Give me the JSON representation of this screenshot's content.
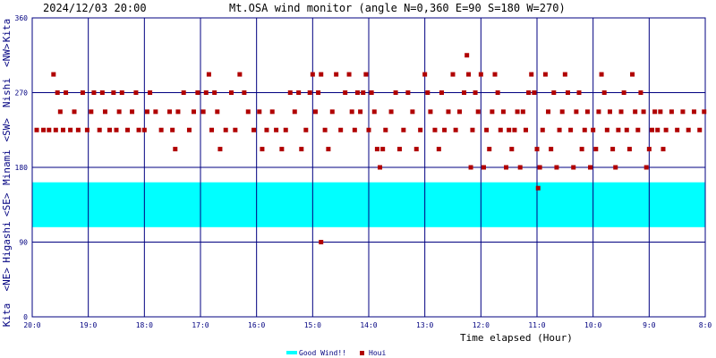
{
  "header": {
    "timestamp": "2024/12/03 20:00",
    "title": "Mt.OSA wind monitor (angle N=0,360 E=90 S=180 W=270)"
  },
  "colors": {
    "frame": "#000080",
    "grid": "#000080",
    "band": "#00ffff",
    "points": "#b00000",
    "text": "#000080"
  },
  "chart_data": {
    "type": "scatter",
    "xlabel": "Time elapsed (Hour)",
    "x_ticks": [
      "20:0",
      "19:0",
      "18:0",
      "17:0",
      "16:0",
      "15:0",
      "14:0",
      "13:0",
      "12:0",
      "11:0",
      "10:0",
      "9:0",
      "8:0"
    ],
    "x_range_hours_elapsed": [
      0,
      12
    ],
    "ylim": [
      0,
      360
    ],
    "y_ticks": [
      0,
      90,
      180,
      270,
      360
    ],
    "y_direction_labels": [
      "Kita",
      "<NE>",
      "Higashi",
      "<SE>",
      "Minami",
      "<SW>",
      "Nishi",
      "<NW>",
      "Kita"
    ],
    "grid": true,
    "legend_position": "bottom-center",
    "legend": [
      {
        "name": "Good Wind!!",
        "kind": "band",
        "range": [
          108,
          162
        ]
      },
      {
        "name": "Houi",
        "kind": "points"
      }
    ],
    "series": [
      {
        "name": "Houi",
        "points": [
          [
            0.08,
            225
          ],
          [
            0.2,
            225
          ],
          [
            0.3,
            225
          ],
          [
            0.38,
            292
          ],
          [
            0.42,
            225
          ],
          [
            0.45,
            270
          ],
          [
            0.5,
            247
          ],
          [
            0.55,
            225
          ],
          [
            0.6,
            270
          ],
          [
            0.68,
            225
          ],
          [
            0.75,
            247
          ],
          [
            0.82,
            225
          ],
          [
            0.9,
            270
          ],
          [
            0.98,
            225
          ],
          [
            1.05,
            247
          ],
          [
            1.1,
            270
          ],
          [
            1.2,
            225
          ],
          [
            1.25,
            270
          ],
          [
            1.3,
            247
          ],
          [
            1.38,
            225
          ],
          [
            1.45,
            270
          ],
          [
            1.5,
            225
          ],
          [
            1.55,
            247
          ],
          [
            1.6,
            270
          ],
          [
            1.7,
            225
          ],
          [
            1.78,
            247
          ],
          [
            1.85,
            270
          ],
          [
            1.9,
            225
          ],
          [
            2.0,
            225
          ],
          [
            2.05,
            247
          ],
          [
            2.1,
            270
          ],
          [
            2.2,
            247
          ],
          [
            2.3,
            225
          ],
          [
            2.45,
            247
          ],
          [
            2.5,
            225
          ],
          [
            2.55,
            202
          ],
          [
            2.6,
            247
          ],
          [
            2.7,
            270
          ],
          [
            2.8,
            225
          ],
          [
            2.88,
            247
          ],
          [
            2.95,
            270
          ],
          [
            3.05,
            247
          ],
          [
            3.1,
            270
          ],
          [
            3.15,
            292
          ],
          [
            3.2,
            225
          ],
          [
            3.25,
            270
          ],
          [
            3.3,
            247
          ],
          [
            3.35,
            202
          ],
          [
            3.45,
            225
          ],
          [
            3.55,
            270
          ],
          [
            3.62,
            225
          ],
          [
            3.7,
            292
          ],
          [
            3.78,
            270
          ],
          [
            3.85,
            247
          ],
          [
            3.95,
            225
          ],
          [
            4.05,
            247
          ],
          [
            4.1,
            202
          ],
          [
            4.18,
            225
          ],
          [
            4.28,
            247
          ],
          [
            4.35,
            225
          ],
          [
            4.45,
            202
          ],
          [
            4.52,
            225
          ],
          [
            4.6,
            270
          ],
          [
            4.68,
            247
          ],
          [
            4.75,
            270
          ],
          [
            4.8,
            202
          ],
          [
            4.88,
            225
          ],
          [
            4.95,
            270
          ],
          [
            5.0,
            292
          ],
          [
            5.05,
            247
          ],
          [
            5.1,
            270
          ],
          [
            5.15,
            292
          ],
          [
            5.22,
            225
          ],
          [
            5.28,
            202
          ],
          [
            5.35,
            247
          ],
          [
            5.42,
            292
          ],
          [
            5.5,
            225
          ],
          [
            5.58,
            270
          ],
          [
            5.65,
            292
          ],
          [
            5.7,
            247
          ],
          [
            5.75,
            225
          ],
          [
            5.8,
            270
          ],
          [
            5.85,
            247
          ],
          [
            5.9,
            270
          ],
          [
            5.95,
            292
          ],
          [
            6.0,
            225
          ],
          [
            6.05,
            270
          ],
          [
            6.1,
            247
          ],
          [
            6.15,
            202
          ],
          [
            6.2,
            180
          ],
          [
            6.25,
            202
          ],
          [
            6.3,
            225
          ],
          [
            6.4,
            247
          ],
          [
            6.48,
            270
          ],
          [
            6.55,
            202
          ],
          [
            6.62,
            225
          ],
          [
            6.7,
            270
          ],
          [
            6.78,
            247
          ],
          [
            6.85,
            202
          ],
          [
            6.92,
            225
          ],
          [
            7.0,
            292
          ],
          [
            7.05,
            270
          ],
          [
            7.1,
            247
          ],
          [
            7.18,
            225
          ],
          [
            7.25,
            202
          ],
          [
            7.3,
            270
          ],
          [
            7.35,
            225
          ],
          [
            7.42,
            247
          ],
          [
            7.5,
            292
          ],
          [
            7.55,
            225
          ],
          [
            7.62,
            247
          ],
          [
            7.7,
            270
          ],
          [
            7.75,
            315
          ],
          [
            7.78,
            292
          ],
          [
            7.82,
            180
          ],
          [
            7.85,
            225
          ],
          [
            7.9,
            270
          ],
          [
            7.95,
            247
          ],
          [
            8.0,
            292
          ],
          [
            8.05,
            180
          ],
          [
            8.1,
            225
          ],
          [
            8.15,
            202
          ],
          [
            8.2,
            247
          ],
          [
            8.25,
            292
          ],
          [
            8.3,
            270
          ],
          [
            8.35,
            225
          ],
          [
            8.4,
            247
          ],
          [
            8.45,
            180
          ],
          [
            8.5,
            225
          ],
          [
            8.55,
            202
          ],
          [
            8.6,
            225
          ],
          [
            8.65,
            247
          ],
          [
            8.7,
            180
          ],
          [
            8.75,
            247
          ],
          [
            8.8,
            225
          ],
          [
            8.85,
            270
          ],
          [
            8.9,
            292
          ],
          [
            8.95,
            270
          ],
          [
            9.0,
            202
          ],
          [
            9.02,
            155
          ],
          [
            9.05,
            180
          ],
          [
            9.1,
            225
          ],
          [
            9.15,
            292
          ],
          [
            9.2,
            247
          ],
          [
            9.25,
            202
          ],
          [
            9.3,
            270
          ],
          [
            9.35,
            180
          ],
          [
            9.4,
            225
          ],
          [
            9.45,
            247
          ],
          [
            9.5,
            292
          ],
          [
            9.55,
            270
          ],
          [
            9.6,
            225
          ],
          [
            9.65,
            180
          ],
          [
            9.7,
            247
          ],
          [
            9.75,
            270
          ],
          [
            9.8,
            202
          ],
          [
            9.85,
            225
          ],
          [
            9.9,
            247
          ],
          [
            9.95,
            180
          ],
          [
            10.0,
            225
          ],
          [
            10.05,
            202
          ],
          [
            10.1,
            247
          ],
          [
            10.15,
            292
          ],
          [
            10.2,
            270
          ],
          [
            10.25,
            225
          ],
          [
            10.3,
            247
          ],
          [
            10.35,
            202
          ],
          [
            10.4,
            180
          ],
          [
            10.45,
            225
          ],
          [
            10.5,
            247
          ],
          [
            10.55,
            270
          ],
          [
            10.6,
            225
          ],
          [
            10.65,
            202
          ],
          [
            10.7,
            292
          ],
          [
            10.75,
            247
          ],
          [
            10.8,
            225
          ],
          [
            10.85,
            270
          ],
          [
            10.9,
            247
          ],
          [
            10.95,
            180
          ],
          [
            11.0,
            202
          ],
          [
            11.05,
            225
          ],
          [
            11.1,
            247
          ],
          [
            11.15,
            225
          ],
          [
            11.2,
            247
          ],
          [
            11.25,
            202
          ],
          [
            11.3,
            225
          ],
          [
            11.4,
            247
          ],
          [
            11.5,
            225
          ],
          [
            11.6,
            247
          ],
          [
            11.7,
            225
          ],
          [
            11.8,
            247
          ],
          [
            11.9,
            225
          ],
          [
            11.98,
            247
          ],
          [
            5.15,
            90
          ]
        ]
      }
    ]
  }
}
